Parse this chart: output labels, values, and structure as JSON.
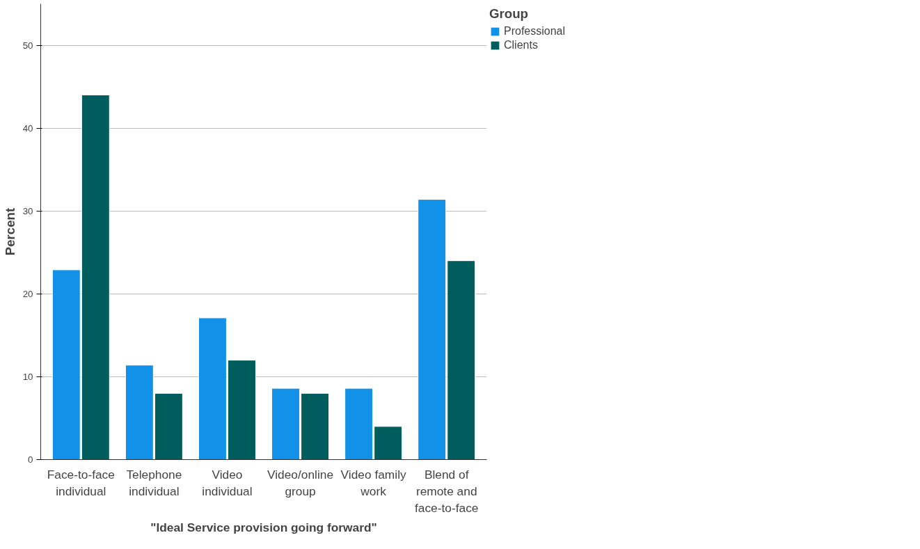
{
  "chart_data": {
    "type": "bar",
    "xlabel": "\"Ideal Service provision going forward\"",
    "ylabel": "Percent",
    "legend_title": "Group",
    "categories": [
      "Face-to-face individual",
      "Telephone individual",
      "Video individual",
      "Video/online group",
      "Video family work",
      "Blend of remote and face-to-face"
    ],
    "series": [
      {
        "name": "Professional",
        "color": "#1192e8",
        "values": [
          22.9,
          11.4,
          17.1,
          8.6,
          8.6,
          31.4
        ]
      },
      {
        "name": "Clients",
        "color": "#005d5d",
        "values": [
          44.0,
          8.0,
          12.0,
          8.0,
          4.0,
          24.0
        ]
      }
    ],
    "ylim": [
      0,
      55
    ],
    "yticks": [
      0,
      10,
      20,
      30,
      40,
      50
    ],
    "grid": "y",
    "legend": "top right"
  }
}
